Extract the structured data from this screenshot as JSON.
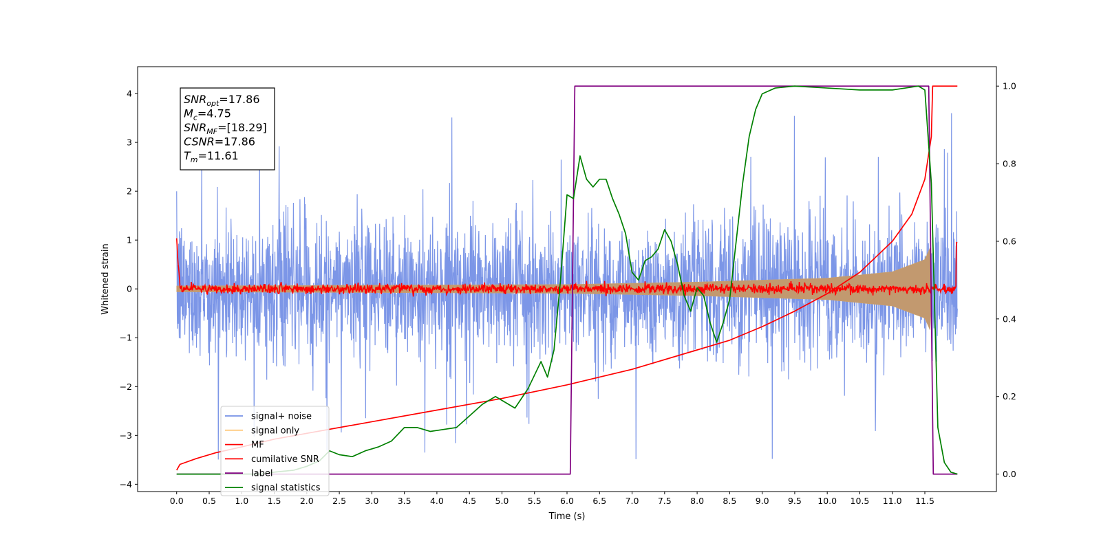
{
  "chart_data": {
    "type": "line",
    "xlabel": "Time (s)",
    "ylabel": "Whitened strain",
    "xlim": [
      -0.6,
      12.6
    ],
    "ylim": [
      -4.15,
      4.55
    ],
    "y2lim": [
      -0.045,
      1.05
    ],
    "xticks": [
      "0.0",
      "0.5",
      "1.0",
      "1.5",
      "2.0",
      "2.5",
      "3.0",
      "3.5",
      "4.0",
      "4.5",
      "5.0",
      "5.5",
      "6.0",
      "6.5",
      "7.0",
      "7.5",
      "8.0",
      "8.5",
      "9.0",
      "9.5",
      "10.0",
      "10.5",
      "11.0",
      "11.5"
    ],
    "yticks": [
      "4",
      "3",
      "2",
      "1",
      "0",
      "−1",
      "−2",
      "−3",
      "−4"
    ],
    "y2ticks": [
      "1.0",
      "0.8",
      "0.6",
      "0.4",
      "0.2",
      "0.0"
    ],
    "legend_position": "lower-left",
    "legend": [
      {
        "label": "signal+ noise",
        "color": "#7590e6"
      },
      {
        "label": "signal only",
        "color": "#ffcc80"
      },
      {
        "label": "MF",
        "color": "#ff0000"
      },
      {
        "label": "cumilative SNR",
        "color": "#ff0000"
      },
      {
        "label": "label",
        "color": "#800080"
      },
      {
        "label": "signal statistics",
        "color": "#008000"
      }
    ],
    "annotation": {
      "snr_opt": {
        "name": "SNR",
        "sub": "opt",
        "value": "=17.86"
      },
      "mc": {
        "name": "M",
        "sub": "c",
        "value": "=4.75"
      },
      "snr_mf": {
        "name": "SNR",
        "sub": "MF",
        "value": "=[18.29]"
      },
      "csnr": {
        "name": "CSNR",
        "sub": "",
        "value": "=17.86"
      },
      "tm": {
        "name": "T",
        "sub": "m",
        "value": "=11.61"
      }
    },
    "series": [
      {
        "name": "signal+ noise",
        "axis": "left",
        "color": "#7590e6",
        "description_values": {
          "t_range": [
            0,
            12
          ],
          "band_typical": [
            -1.4,
            1.4
          ],
          "min": -3.78,
          "max": 3.72
        }
      },
      {
        "name": "signal only",
        "axis": "left",
        "color": "#c2996f",
        "envelope": {
          "t": [
            0,
            6,
            8,
            10,
            11,
            11.5,
            11.6,
            11.61
          ],
          "amp": [
            0.06,
            0.09,
            0.14,
            0.22,
            0.35,
            0.6,
            0.9,
            0.0
          ]
        }
      },
      {
        "name": "MF",
        "axis": "left",
        "color": "#ff0000",
        "noise_amp": 0.05,
        "edge_values": {
          "start": 1.0,
          "end": 0.95
        }
      },
      {
        "name": "cumilative SNR",
        "axis": "right",
        "color": "#ff0000",
        "t": [
          0,
          0.05,
          0.3,
          0.6,
          1.0,
          1.5,
          2.0,
          3.0,
          4.0,
          5.0,
          6.0,
          7.0,
          8.0,
          8.5,
          9.0,
          9.5,
          10.0,
          10.5,
          11.0,
          11.3,
          11.5,
          11.6,
          11.62,
          12.0
        ],
        "y": [
          0.01,
          0.025,
          0.04,
          0.055,
          0.07,
          0.09,
          0.105,
          0.135,
          0.165,
          0.195,
          0.23,
          0.27,
          0.32,
          0.345,
          0.38,
          0.42,
          0.465,
          0.52,
          0.6,
          0.67,
          0.76,
          0.87,
          1.0,
          1.0
        ]
      },
      {
        "name": "label",
        "axis": "right",
        "color": "#800080",
        "t": [
          0,
          6.05,
          6.12,
          11.56,
          11.63,
          12.0
        ],
        "y": [
          0.0,
          0.0,
          1.0,
          1.0,
          0.0,
          0.0
        ]
      },
      {
        "name": "signal statistics",
        "axis": "right",
        "color": "#008000",
        "t": [
          0,
          1.0,
          1.3,
          1.5,
          1.8,
          2.0,
          2.2,
          2.35,
          2.5,
          2.7,
          2.9,
          3.0,
          3.1,
          3.3,
          3.5,
          3.7,
          3.9,
          4.1,
          4.3,
          4.5,
          4.7,
          4.9,
          5.0,
          5.2,
          5.4,
          5.6,
          5.7,
          5.8,
          5.9,
          6.0,
          6.1,
          6.2,
          6.3,
          6.4,
          6.5,
          6.6,
          6.7,
          6.8,
          6.9,
          7.0,
          7.1,
          7.2,
          7.3,
          7.4,
          7.5,
          7.6,
          7.7,
          7.8,
          7.9,
          8.0,
          8.1,
          8.2,
          8.3,
          8.4,
          8.5,
          8.6,
          8.7,
          8.8,
          8.9,
          9.0,
          9.2,
          9.5,
          10.0,
          10.5,
          11.0,
          11.2,
          11.4,
          11.5,
          11.6,
          11.7,
          11.8,
          11.9,
          12.0
        ],
        "y": [
          0.0,
          0.0,
          0.0,
          0.005,
          0.01,
          0.02,
          0.035,
          0.06,
          0.05,
          0.045,
          0.06,
          0.065,
          0.07,
          0.085,
          0.12,
          0.12,
          0.11,
          0.115,
          0.12,
          0.15,
          0.18,
          0.2,
          0.19,
          0.17,
          0.22,
          0.29,
          0.25,
          0.32,
          0.5,
          0.72,
          0.71,
          0.82,
          0.76,
          0.74,
          0.76,
          0.76,
          0.71,
          0.67,
          0.62,
          0.52,
          0.5,
          0.55,
          0.56,
          0.58,
          0.63,
          0.6,
          0.54,
          0.46,
          0.42,
          0.48,
          0.46,
          0.39,
          0.34,
          0.39,
          0.45,
          0.6,
          0.75,
          0.87,
          0.94,
          0.98,
          0.995,
          1.0,
          0.995,
          0.99,
          0.99,
          0.995,
          1.0,
          0.99,
          0.75,
          0.12,
          0.03,
          0.005,
          0.0
        ]
      }
    ]
  }
}
